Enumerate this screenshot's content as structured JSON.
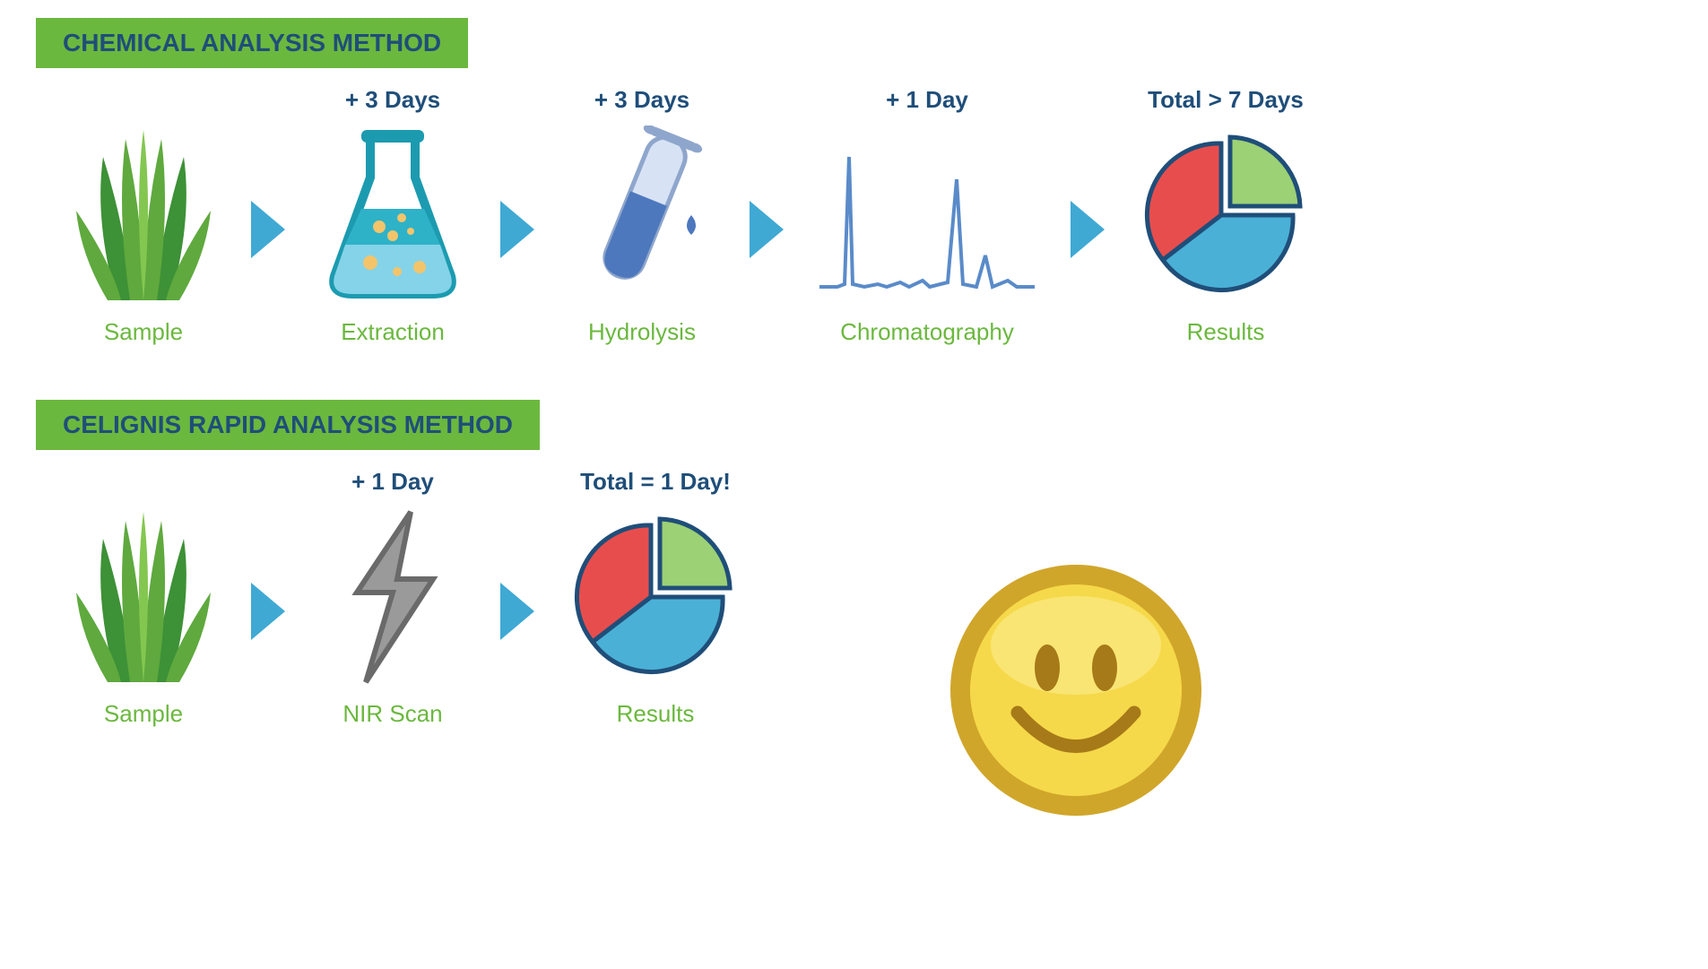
{
  "colors": {
    "header_bg": "#6bb83e",
    "header_text": "#1f4e79",
    "time_text": "#1f4e79",
    "step_text": "#6bb83e",
    "arrow": "#3fa9d4",
    "grass_dark": "#3d9136",
    "grass_mid": "#5fa93e",
    "grass_light": "#83c750",
    "flask_outline": "#1c9bb0",
    "flask_liquid_dark": "#2eb2c8",
    "flask_liquid_light": "#85d3e8",
    "flask_bubble": "#f4c46a",
    "tube_outline": "#8fa6cc",
    "tube_fill": "#8fa6cc",
    "tube_liquid": "#4d78bd",
    "chroma_line": "#5a8bc9",
    "pie_red": "#e84d4d",
    "pie_green": "#9dd175",
    "pie_blue": "#4ab0d6",
    "pie_stroke": "#1f4e79",
    "bolt_fill": "#9a9a9a",
    "bolt_edge": "#6a6a6a",
    "smiley_rim": "#d0a62a",
    "smiley_face": "#f6d94a",
    "smiley_gloss": "#fbe985",
    "smiley_features": "#a67a18"
  },
  "section1": {
    "header": "CHEMICAL ANALYSIS METHOD",
    "steps": [
      {
        "label": "Sample",
        "time": "",
        "icon": "grass"
      },
      {
        "label": "Extraction",
        "time": "+ 3 Days",
        "icon": "flask"
      },
      {
        "label": "Hydrolysis",
        "time": "+ 3 Days",
        "icon": "tube"
      },
      {
        "label": "Chromatography",
        "time": "+ 1 Day",
        "icon": "chroma"
      },
      {
        "label": "Results",
        "time": "Total > 7 Days",
        "icon": "pie"
      }
    ]
  },
  "section2": {
    "header": "CELIGNIS RAPID ANALYSIS METHOD",
    "steps": [
      {
        "label": "Sample",
        "time": "",
        "icon": "grass"
      },
      {
        "label": "NIR Scan",
        "time": "+ 1 Day",
        "icon": "bolt"
      },
      {
        "label": "Results",
        "time": "Total = 1 Day!",
        "icon": "pie"
      }
    ]
  }
}
